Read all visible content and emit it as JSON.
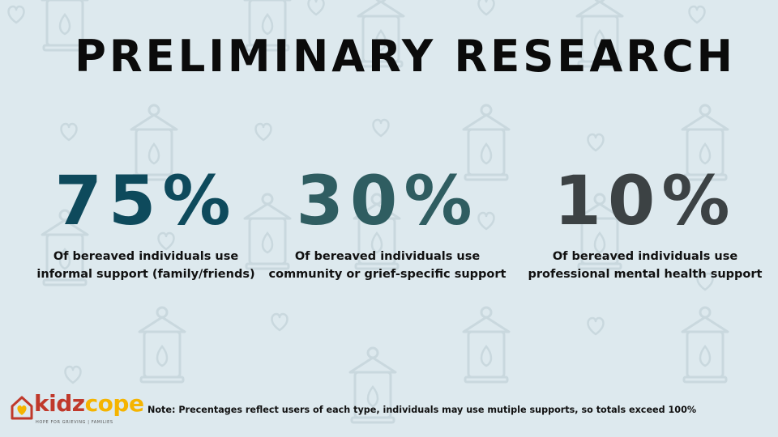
{
  "title": "PRELIMINARY RESEARCH",
  "stats": [
    {
      "value": "75%",
      "description": "Of bereaved individuals use informal support (family/friends)",
      "color": "#0e4a5c"
    },
    {
      "value": "30%",
      "description": "Of bereaved individuals use community or grief-specific support",
      "color": "#2f5d61"
    },
    {
      "value": "10%",
      "description": "Of bereaved individuals use professional mental health support",
      "color": "#3c4244"
    }
  ],
  "logo": {
    "name_part1": "kidz",
    "name_part2": "cope",
    "tagline": "HOPE FOR GRIEVING | FAMILIES",
    "colors": {
      "primary": "#c0392b",
      "accent": "#f5b400"
    }
  },
  "note": "Note: Precentages reflect users of each type, individuals may use mutiple supports, so totals exceed 100%",
  "background": {
    "color": "#dde9ee",
    "pattern_icons": [
      "lantern-icon",
      "heart-icon"
    ]
  }
}
